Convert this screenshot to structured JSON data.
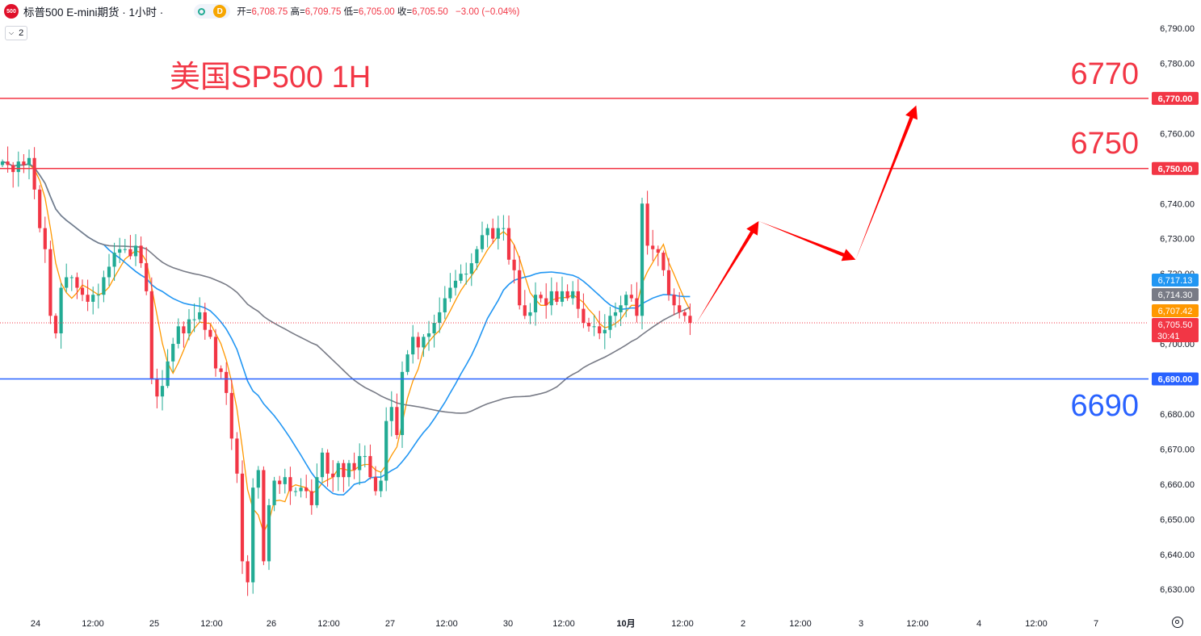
{
  "header": {
    "logo_text": "500",
    "symbol": "标普500 E-mini期货 · 1小时 ·",
    "live_indicator": "green-dot-icon",
    "badge": "D",
    "ohlc": {
      "open_label": "开=",
      "open": "6,708.75",
      "high_label": "高=",
      "high": "6,709.75",
      "low_label": "低=",
      "low": "6,705.00",
      "close_label": "收=",
      "close": "6,705.50",
      "change": "−3.00 (−0.04%)"
    },
    "indicator_count": "2"
  },
  "annotations": {
    "title": "美国SP500 1H",
    "level_6770": "6770",
    "level_6750": "6750",
    "level_6690": "6690"
  },
  "colors": {
    "up": "#22ab94",
    "down": "#f23645",
    "ma_fast": "#ff9800",
    "ma_mid": "#2196f3",
    "ma_slow": "#787b86",
    "res_line": "#f23645",
    "sup_line": "#2962ff",
    "arrow": "#ff0000"
  },
  "chart_data": {
    "type": "candlestick",
    "y_range": [
      6622,
      6792
    ],
    "y_ticks": [
      "6,790.00",
      "6,780.00",
      "6,770.00",
      "6,760.00",
      "6,750.00",
      "6,740.00",
      "6,730.00",
      "6,720.00",
      "6,710.00",
      "6,700.00",
      "6,690.00",
      "6,680.00",
      "6,670.00",
      "6,660.00",
      "6,650.00",
      "6,640.00",
      "6,630.00"
    ],
    "x_ticks": [
      "24",
      "12:00",
      "25",
      "12:00",
      "26",
      "12:00",
      "27",
      "12:00",
      "30",
      "12:00",
      "10月",
      "12:00",
      "2",
      "12:00",
      "3",
      "12:00",
      "4",
      "12:00",
      "7"
    ],
    "horizontal_lines": [
      {
        "name": "resistance-6770",
        "value": 6770,
        "color": "#f23645",
        "label": "6,770.00"
      },
      {
        "name": "resistance-6750",
        "value": 6750,
        "color": "#f23645",
        "label": "6,750.00"
      },
      {
        "name": "support-6690",
        "value": 6690,
        "color": "#2962ff",
        "label": "6,690.00"
      }
    ],
    "price_labels": [
      {
        "value": 6717.13,
        "text": "6,717.13",
        "color": "#2196f3"
      },
      {
        "value": 6714.3,
        "text": "6,714.30",
        "color": "#787b86"
      },
      {
        "value": 6707.42,
        "text": "6,707.42",
        "color": "#ff9800"
      },
      {
        "value": 6705.5,
        "text": "6,705.50",
        "color": "#f23645",
        "countdown": "30:41"
      }
    ],
    "closes": [
      6752,
      6751,
      6749,
      6752,
      6751,
      6753,
      6744,
      6733,
      6727,
      6708,
      6703,
      6716,
      6719,
      6719,
      6716,
      6714,
      6712,
      6714,
      6714,
      6719,
      6722,
      6726,
      6727,
      6727,
      6725,
      6728,
      6723,
      6715,
      6690,
      6685,
      6688,
      6695,
      6700,
      6705,
      6703,
      6707,
      6707,
      6709,
      6704,
      6702,
      6693,
      6692,
      6686,
      6673,
      6663,
      6638,
      6632,
      6659,
      6664,
      6638,
      6654,
      6661,
      6660,
      6662,
      6658,
      6658,
      6659,
      6658,
      6654,
      6662,
      6669,
      6663,
      6662,
      6666,
      6662,
      6666,
      6664,
      6668,
      6668,
      6662,
      6658,
      6661,
      6678,
      6682,
      6674,
      6692,
      6697,
      6702,
      6699,
      6702,
      6703,
      6706,
      6709,
      6713,
      6716,
      6718,
      6720,
      6720,
      6723,
      6727,
      6731,
      6733,
      6730,
      6733,
      6733,
      6724,
      6721,
      6711,
      6708,
      6709,
      6714,
      6713,
      6711,
      6715,
      6712,
      6715,
      6713,
      6715,
      6710,
      6706,
      6705,
      6705,
      6703,
      6704,
      6708,
      6709,
      6711,
      6714,
      6713,
      6708,
      6740,
      6728,
      6727,
      6726,
      6721,
      6714,
      6711,
      6709,
      6708,
      6706
    ]
  }
}
